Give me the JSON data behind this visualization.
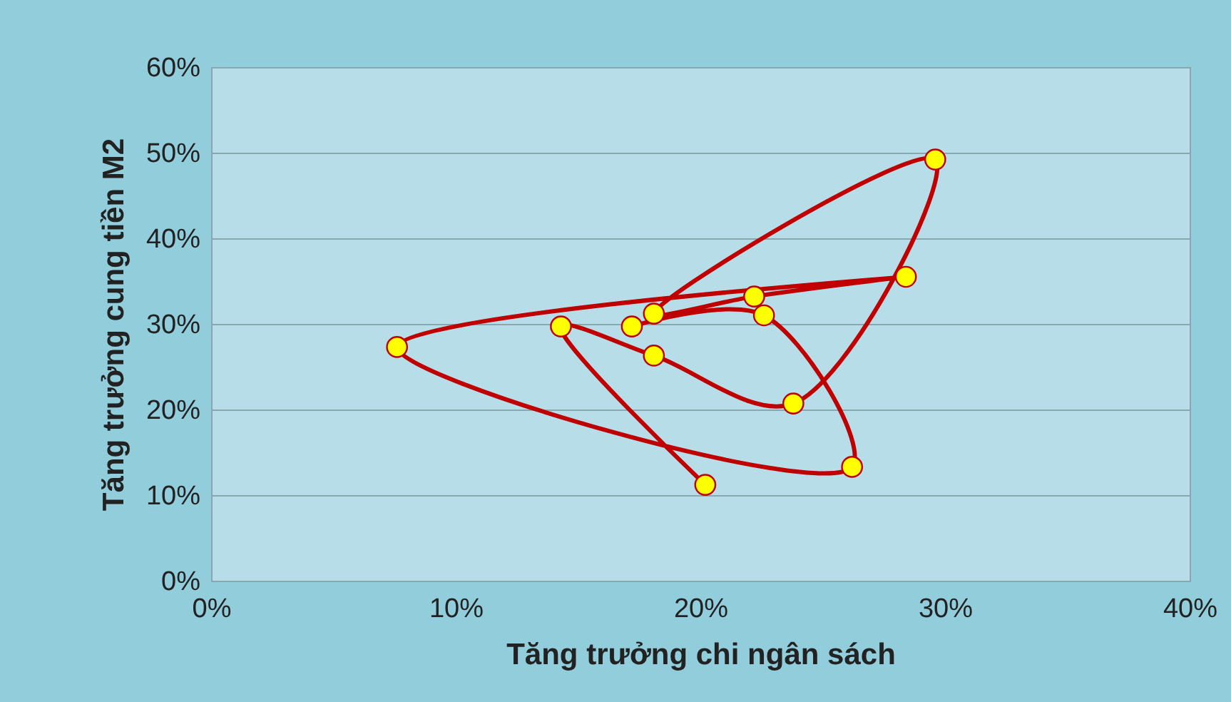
{
  "chart_data": {
    "type": "line",
    "xlabel": "Tăng trưởng chi ngân sách",
    "ylabel": "Tăng trưởng cung tiền M2",
    "x": [
      20.2,
      14.3,
      18.1,
      23.8,
      29.6,
      18.1,
      22.2,
      28.4,
      7.6,
      26.2,
      22.6,
      17.2
    ],
    "series": [
      {
        "color": "#c00000",
        "values": [
          11.2,
          29.7,
          26.3,
          20.7,
          49.2,
          31.2,
          33.2,
          35.5,
          27.3,
          13.3,
          31.0,
          29.7
        ]
      }
    ],
    "xlim": [
      0,
      40
    ],
    "xticks": [
      {
        "value": 0,
        "label": "0%"
      },
      {
        "value": 10,
        "label": "10%"
      },
      {
        "value": 20,
        "label": "20%"
      },
      {
        "value": 30,
        "label": "30%"
      },
      {
        "value": 40,
        "label": "40%"
      }
    ],
    "ylim": [
      0,
      60
    ],
    "yticks": [
      {
        "value": 0,
        "label": "0%"
      },
      {
        "value": 10,
        "label": "10%"
      },
      {
        "value": 20,
        "label": "20%"
      },
      {
        "value": 30,
        "label": "30%"
      },
      {
        "value": 40,
        "label": "40%"
      },
      {
        "value": 50,
        "label": "50%"
      },
      {
        "value": 60,
        "label": "60%"
      }
    ],
    "grid": "y",
    "marker": "circle",
    "line_style": "solid"
  }
}
